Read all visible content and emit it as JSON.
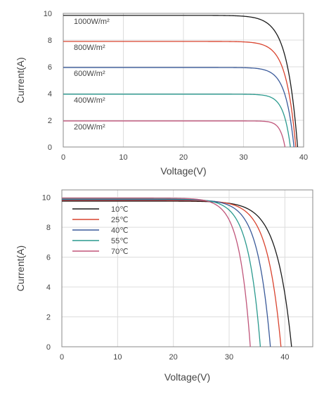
{
  "chart_data": [
    {
      "type": "line",
      "title": "",
      "xlabel": "Voltage(V)",
      "ylabel": "Current(A)",
      "xlim": [
        0,
        40
      ],
      "ylim": [
        0,
        10
      ],
      "xticks": [
        "0",
        "10",
        "20",
        "30",
        "40"
      ],
      "yticks": [
        "0",
        "2",
        "4",
        "6",
        "8",
        "10"
      ],
      "grid": true,
      "legend": "inline labels",
      "series": [
        {
          "name": "1000W/m²",
          "color": "#1a1a1a",
          "isc": 9.85,
          "voc": 39.0,
          "knee": 31.5
        },
        {
          "name": "800W/m²",
          "color": "#d9432e",
          "isc": 7.9,
          "voc": 38.7,
          "knee": 32.0
        },
        {
          "name": "600W/m²",
          "color": "#3a5a9a",
          "isc": 5.95,
          "voc": 38.4,
          "knee": 32.5
        },
        {
          "name": "400W/m²",
          "color": "#2a9a8e",
          "isc": 3.95,
          "voc": 37.8,
          "knee": 33.0
        },
        {
          "name": "200W/m²",
          "color": "#c0557a",
          "isc": 1.95,
          "voc": 36.9,
          "knee": 33.5
        }
      ]
    },
    {
      "type": "line",
      "title": "",
      "xlabel": "Voltage(V)",
      "ylabel": "Current(A)",
      "xlim": [
        0,
        45
      ],
      "ylim": [
        0,
        10.5
      ],
      "xticks": [
        "0",
        "10",
        "20",
        "30",
        "40"
      ],
      "yticks": [
        "0",
        "2",
        "4",
        "6",
        "8",
        "10"
      ],
      "grid": true,
      "legend": "top-left",
      "series": [
        {
          "name": "10℃",
          "color": "#1a1a1a",
          "isc": 9.75,
          "voc": 41.2,
          "knee": 30.0
        },
        {
          "name": "25℃",
          "color": "#d9432e",
          "isc": 9.8,
          "voc": 39.3,
          "knee": 29.0
        },
        {
          "name": "40℃",
          "color": "#3a5a9a",
          "isc": 9.85,
          "voc": 37.4,
          "knee": 27.8
        },
        {
          "name": "55℃",
          "color": "#2a9a8e",
          "isc": 9.9,
          "voc": 35.6,
          "knee": 26.5
        },
        {
          "name": "70℃",
          "color": "#c0557a",
          "isc": 9.95,
          "voc": 33.8,
          "knee": 25.5
        }
      ]
    }
  ]
}
